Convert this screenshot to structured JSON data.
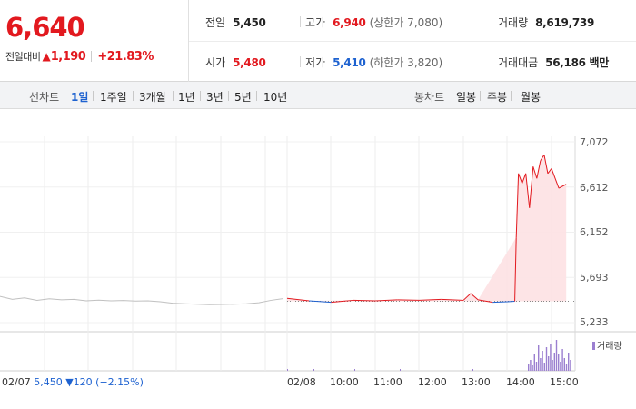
{
  "quote": {
    "price": "6,640",
    "change_label": "전일대비",
    "change_symbol": "▲",
    "change_amount": "1,190",
    "change_percent": "+21.83%",
    "prev_close_label": "전일",
    "prev_close": "5,450",
    "high_label": "고가",
    "high": "6,940",
    "upper_limit": "(상한가 7,080)",
    "volume_label": "거래량",
    "volume": "8,619,739",
    "open_label": "시가",
    "open": "5,480",
    "low_label": "저가",
    "low": "5,410",
    "lower_limit": "(하한가 3,820)",
    "trade_value_label": "거래대금",
    "trade_value": "56,186 백만"
  },
  "tabs": {
    "line_label": "선차트",
    "line_ranges": [
      "1일",
      "1주일",
      "3개월",
      "1년",
      "3년",
      "5년",
      "10년"
    ],
    "active_range": "1일",
    "candle_label": "봉차트",
    "candle_ranges": [
      "일봉",
      "주봉",
      "월봉"
    ]
  },
  "chart": {
    "y_ticks": [
      "7,072",
      "6,612",
      "6,152",
      "5,693",
      "5,233"
    ],
    "prev_date": "02/07",
    "prev_value": "5,450",
    "prev_change_symbol": "▼",
    "prev_change": "120",
    "prev_change_pct": "(−2.15%)",
    "x_ticks": [
      "02/08",
      "10:00",
      "11:00",
      "12:00",
      "13:00",
      "14:00",
      "15:00"
    ],
    "volume_legend": "거래량",
    "colors": {
      "up": "#e2191f",
      "down": "#1e62d0",
      "prev_line": "#c0c0c0",
      "fill": "#fde1e3",
      "volume": "#9b7fd0"
    }
  },
  "chart_data": {
    "type": "line",
    "title": "",
    "ylim": [
      5233,
      7072
    ],
    "y_ticks": [
      7072,
      6612,
      6152,
      5693,
      5233
    ],
    "base_value": 5450,
    "series": [
      {
        "values": [
          5500,
          5470,
          5485,
          5460,
          5475,
          5465,
          5470,
          5455,
          5462,
          5455,
          5458,
          5452,
          5455,
          5445,
          5430,
          5425,
          5420,
          5415,
          5418,
          5420,
          5425,
          5435,
          5460,
          5478
        ]
      },
      {
        "x": [
          "09:00",
          "09:30",
          "10:00",
          "10:30",
          "11:00",
          "11:30",
          "12:00",
          "12:30",
          "13:00",
          "13:10",
          "13:20",
          "13:40",
          "14:00",
          "14:10",
          "14:12",
          "14:15",
          "14:20",
          "14:25",
          "14:30",
          "14:35",
          "14:40",
          "14:45",
          "14:50",
          "14:55",
          "15:00",
          "15:10",
          "15:20"
        ],
        "values": [
          5480,
          5455,
          5440,
          5460,
          5455,
          5465,
          5460,
          5470,
          5460,
          5530,
          5465,
          5440,
          5445,
          5450,
          6100,
          6750,
          6650,
          6750,
          6400,
          6820,
          6700,
          6880,
          6940,
          6750,
          6800,
          6600,
          6640
        ]
      }
    ]
  }
}
